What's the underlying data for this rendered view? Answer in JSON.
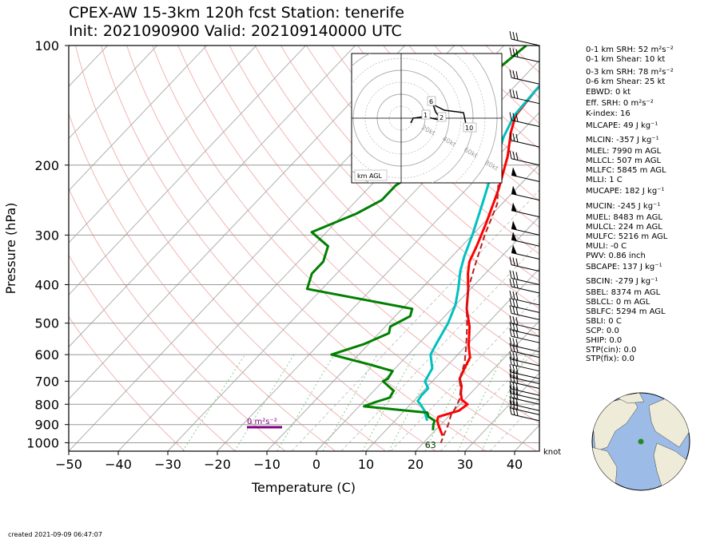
{
  "header": {
    "title_line1": "CPEX-AW 15-3km  120h fcst  Station: tenerife",
    "title_line2": "Init: 2021090900  Valid: 202109140000 UTC"
  },
  "footer": {
    "created": "created 2021-09-09 06:47:07"
  },
  "chart_data": {
    "type": "line",
    "xlabel": "Temperature (C)",
    "ylabel": "Pressure (hPa)",
    "xlim": [
      -50,
      45
    ],
    "ylim": [
      1050,
      100
    ],
    "y_scale": "log",
    "x_ticks": [
      -50,
      -40,
      -30,
      -20,
      -10,
      0,
      10,
      20,
      30,
      40
    ],
    "x_tick_labels": [
      "−50",
      "−40",
      "−30",
      "−20",
      "−10",
      "0",
      "10",
      "20",
      "30",
      "40"
    ],
    "y_ticks": [
      100,
      200,
      300,
      400,
      500,
      600,
      700,
      800,
      900,
      1000
    ],
    "wind_unit_label": "knot",
    "skew": true,
    "grid": true,
    "series": [
      {
        "role": "temperature",
        "color": "#ff0000",
        "points": [
          [
            -25,
            100
          ],
          [
            -25.2,
            110
          ],
          [
            -25,
            130
          ],
          [
            -24.2,
            150
          ],
          [
            -22,
            165
          ],
          [
            -18,
            190
          ],
          [
            -13.5,
            230
          ],
          [
            -9.5,
            280
          ],
          [
            -7,
            320
          ],
          [
            -5.5,
            350
          ],
          [
            -3.5,
            375
          ],
          [
            -0.5,
            410
          ],
          [
            3,
            460
          ],
          [
            7,
            510
          ],
          [
            10.5,
            570
          ],
          [
            13,
            610
          ],
          [
            14,
            650
          ],
          [
            15,
            690
          ],
          [
            16.8,
            720
          ],
          [
            18,
            750
          ],
          [
            19.5,
            780
          ],
          [
            21.5,
            800
          ],
          [
            21,
            830
          ],
          [
            18,
            860
          ],
          [
            18.5,
            880
          ],
          [
            19.5,
            900
          ],
          [
            20.5,
            920
          ],
          [
            21.5,
            940
          ],
          [
            22.5,
            960
          ]
        ]
      },
      {
        "role": "dewpoint",
        "color": "#00c0c0",
        "points": [
          [
            -24.5,
            100
          ],
          [
            -25,
            110
          ],
          [
            -25,
            130
          ],
          [
            -24.5,
            150
          ],
          [
            -22.5,
            170
          ],
          [
            -19,
            200
          ],
          [
            -14,
            250
          ],
          [
            -10,
            300
          ],
          [
            -7.5,
            340
          ],
          [
            -5.5,
            370
          ],
          [
            -2.5,
            410
          ],
          [
            0,
            450
          ],
          [
            2,
            500
          ],
          [
            3.5,
            560
          ],
          [
            4.5,
            600
          ],
          [
            7.5,
            650
          ],
          [
            8.5,
            700
          ],
          [
            10.5,
            730
          ],
          [
            10.5,
            760
          ],
          [
            10.8,
            785
          ],
          [
            12,
            800
          ],
          [
            14,
            830
          ],
          [
            15.5,
            860
          ],
          [
            16.5,
            880
          ]
        ]
      },
      {
        "role": "parcel",
        "color": "#b22222",
        "dashed": true,
        "points": [
          [
            -50,
            110
          ],
          [
            -35,
            140
          ],
          [
            -27,
            165
          ],
          [
            -18,
            200
          ],
          [
            -11,
            250
          ],
          [
            -7.5,
            300
          ],
          [
            -3.5,
            360
          ],
          [
            -0.5,
            410
          ],
          [
            3,
            460
          ],
          [
            6.5,
            510
          ],
          [
            10,
            570
          ],
          [
            13,
            630
          ],
          [
            15,
            690
          ],
          [
            17.5,
            740
          ],
          [
            19,
            780
          ],
          [
            19.8,
            820
          ],
          [
            20.2,
            850
          ],
          [
            21.5,
            900
          ],
          [
            22.5,
            950
          ],
          [
            23.5,
            1000
          ]
        ]
      },
      {
        "role": "wet-bulb",
        "color": "#008000",
        "points": [
          [
            -35.5,
            100
          ],
          [
            -37.5,
            125
          ],
          [
            -33.5,
            145
          ],
          [
            -35.5,
            165
          ],
          [
            -33,
            205
          ],
          [
            -35,
            225
          ],
          [
            -35,
            245
          ],
          [
            -37.5,
            265
          ],
          [
            -43,
            295
          ],
          [
            -37,
            320
          ],
          [
            -35,
            350
          ],
          [
            -35,
            375
          ],
          [
            -33,
            410
          ],
          [
            -8,
            460
          ],
          [
            -7,
            480
          ],
          [
            -9,
            510
          ],
          [
            -8,
            530
          ],
          [
            -11,
            565
          ],
          [
            -15.5,
            600
          ],
          [
            -6,
            635
          ],
          [
            0,
            660
          ],
          [
            0.5,
            690
          ],
          [
            0,
            700
          ],
          [
            4,
            740
          ],
          [
            4.5,
            770
          ],
          [
            2.5,
            790
          ],
          [
            1,
            810
          ],
          [
            15,
            840
          ],
          [
            16,
            860
          ],
          [
            18,
            880
          ],
          [
            18.5,
            900
          ],
          [
            19.5,
            930
          ]
        ]
      }
    ],
    "annotations": {
      "surface_wet_bulb_label": "63",
      "srh_bar_label": "0 m²s⁻²",
      "hodograph": {
        "ring_labels": [
          "20kt",
          "40kt",
          "60kt",
          "80kt"
        ],
        "height_labels": [
          "1",
          "2",
          "6",
          "10"
        ],
        "footer_label": "km AGL"
      }
    }
  },
  "indices": [
    "0-1 km SRH: 52 m²s⁻²",
    "0-1 km Shear: 10 kt",
    "0-3 km SRH: 78 m²s⁻²",
    "0-6 km Shear: 25 kt",
    "EBWD: 0 kt",
    "Eff. SRH: 0 m²s⁻²",
    "K-index: 16",
    "MLCAPE: 49 J kg⁻¹",
    "MLCIN: -357 J kg⁻¹",
    "MLEL: 7990 m AGL",
    "MLLCL: 507 m AGL",
    "MLLFC: 5845 m AGL",
    "MLLI: 1 C",
    "MUCAPE: 182 J kg⁻¹",
    "MUCIN: -245 J kg⁻¹",
    "MUEL: 8483 m AGL",
    "MULCL: 224 m AGL",
    "MULFC: 5216 m AGL",
    "MULI: -0 C",
    "PWV: 0.86 inch",
    "SBCAPE: 137 J kg⁻¹",
    "SBCIN: -279 J kg⁻¹",
    "SBEL: 8374 m AGL",
    "SBLCL: 0 m AGL",
    "SBLFC: 5294 m AGL",
    "SBLI: 0 C",
    "SCP: 0.0",
    "SHIP: 0.0",
    "STP(cin): 0.0",
    "STP(fix): 0.0"
  ],
  "colors": {
    "temperature": "#ff0000",
    "dewpoint": "#00c0c0",
    "parcel": "#b22222",
    "wet_bulb": "#008000",
    "isotherm": "#b0b0b0",
    "dry_adiabat": "#f4b4b4",
    "moist_adiabat": "#b0b0b0",
    "mixing_ratio": "#88cc88",
    "srh_bar": "#800080",
    "globe_ocean": "#9cbbe6",
    "globe_land": "#eeecd8"
  }
}
